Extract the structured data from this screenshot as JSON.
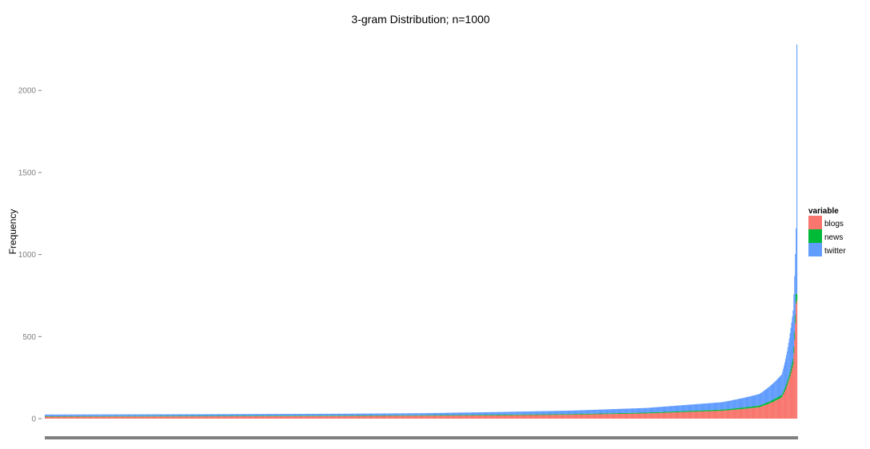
{
  "chart_data": {
    "type": "bar",
    "stacked": true,
    "title": "3-gram Distribution; n=1000",
    "xlabel": "",
    "ylabel": "Frequency",
    "ylim": [
      -30,
      2300
    ],
    "yticks": [
      0,
      500,
      1000,
      1500,
      2000
    ],
    "grid": false,
    "legend": {
      "title": "variable",
      "position": "right",
      "entries": [
        "blogs",
        "news",
        "twitter"
      ]
    },
    "series": [
      {
        "name": "blogs",
        "color": "#F8766D"
      },
      {
        "name": "news",
        "color": "#00BA38"
      },
      {
        "name": "twitter",
        "color": "#619CFF"
      }
    ],
    "n_categories": 1000,
    "category_order": "ascending total frequency",
    "sample_points": [
      {
        "rank": 1,
        "blogs": 12,
        "news": 3,
        "twitter": 10,
        "total": 25
      },
      {
        "rank": 200,
        "blogs": 14,
        "news": 3,
        "twitter": 10,
        "total": 27
      },
      {
        "rank": 400,
        "blogs": 16,
        "news": 3,
        "twitter": 11,
        "total": 30
      },
      {
        "rank": 500,
        "blogs": 18,
        "news": 3,
        "twitter": 12,
        "total": 33
      },
      {
        "rank": 600,
        "blogs": 20,
        "news": 4,
        "twitter": 16,
        "total": 40
      },
      {
        "rank": 700,
        "blogs": 24,
        "news": 4,
        "twitter": 21,
        "total": 49
      },
      {
        "rank": 800,
        "blogs": 32,
        "news": 5,
        "twitter": 28,
        "total": 65
      },
      {
        "rank": 900,
        "blogs": 48,
        "news": 7,
        "twitter": 45,
        "total": 100
      },
      {
        "rank": 950,
        "blogs": 70,
        "news": 10,
        "twitter": 70,
        "total": 150
      },
      {
        "rank": 980,
        "blogs": 130,
        "news": 15,
        "twitter": 125,
        "total": 270
      },
      {
        "rank": 995,
        "blogs": 330,
        "news": 35,
        "twitter": 295,
        "total": 660
      },
      {
        "rank": 999,
        "blogs": 700,
        "news": 60,
        "twitter": 400,
        "total": 1160
      },
      {
        "rank": 1000,
        "blogs": 720,
        "news": 40,
        "twitter": 1520,
        "total": 2280
      }
    ]
  }
}
